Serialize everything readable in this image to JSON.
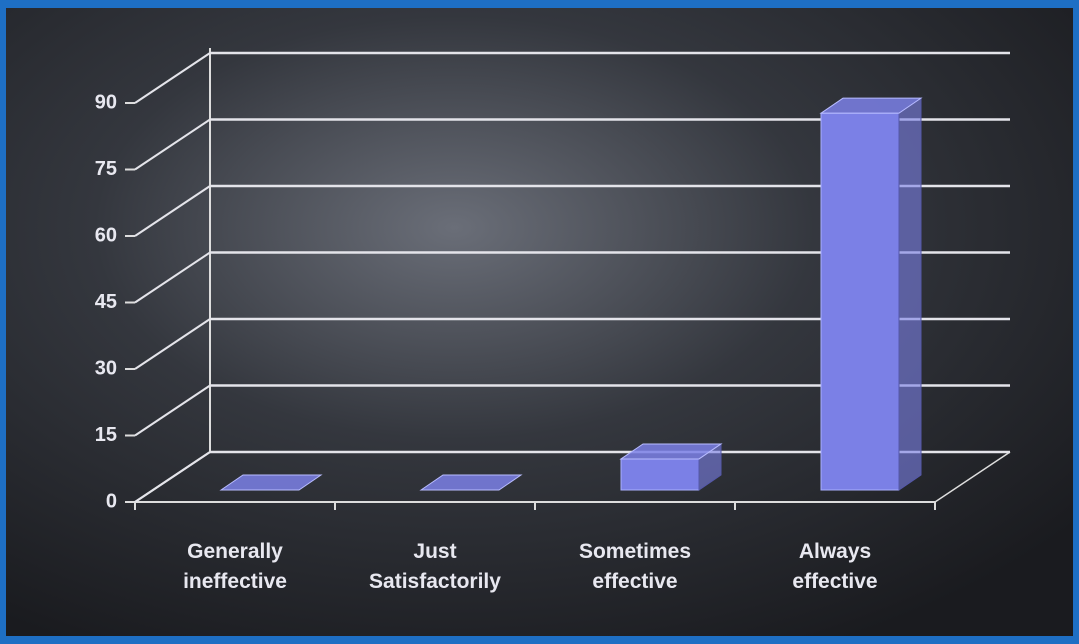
{
  "chart_data": {
    "type": "bar3d",
    "categories": [
      "Generally ineffective",
      "Just Satisfactorily",
      "Sometimes effective",
      "Always effective"
    ],
    "values": [
      0,
      0,
      7,
      85
    ],
    "color": "#7b80e6",
    "ylim": [
      0,
      90
    ],
    "yticks": [
      0,
      15,
      30,
      45,
      60,
      75,
      90
    ],
    "grid": true
  }
}
